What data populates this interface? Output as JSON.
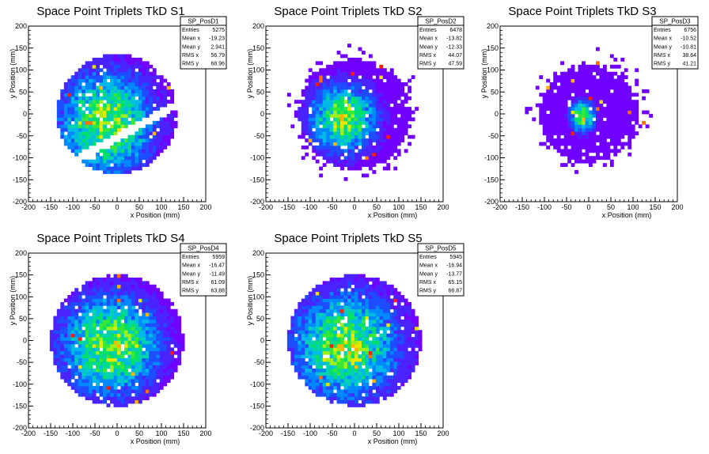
{
  "chart_data": [
    {
      "type": "heatmap",
      "title": "Space Point Triplets TkD S1",
      "xlabel": "x Position (mm)",
      "ylabel": "y Position (mm)",
      "xlim": [
        -200,
        200
      ],
      "ylim": [
        -200,
        200
      ],
      "xticks": [
        "-200",
        "-150",
        "-100",
        "-50",
        "0",
        "50",
        "100",
        "150",
        "200"
      ],
      "yticks": [
        "-200",
        "-150",
        "-100",
        "-50",
        "0",
        "50",
        "100",
        "150",
        "200"
      ],
      "stats": {
        "name": "SP_PosD1",
        "rows": [
          {
            "label": "Entries",
            "value": "5275"
          },
          {
            "label": "Mean x",
            "value": "-19.23"
          },
          {
            "label": "Mean y",
            "value": "2.941"
          },
          {
            "label": "RMS x",
            "value": "56.79"
          },
          {
            "label": "RMS y",
            "value": "68.96"
          }
        ]
      }
    },
    {
      "type": "heatmap",
      "title": "Space Point Triplets TkD S2",
      "xlabel": "x Position (mm)",
      "ylabel": "y Position (mm)",
      "xlim": [
        -200,
        200
      ],
      "ylim": [
        -200,
        200
      ],
      "xticks": [
        "-200",
        "-150",
        "-100",
        "-50",
        "0",
        "50",
        "100",
        "150",
        "200"
      ],
      "yticks": [
        "-200",
        "-150",
        "-100",
        "-50",
        "0",
        "50",
        "100",
        "150",
        "200"
      ],
      "stats": {
        "name": "SP_PosD2",
        "rows": [
          {
            "label": "Entries",
            "value": "6478"
          },
          {
            "label": "Mean x",
            "value": "-13.82"
          },
          {
            "label": "Mean y",
            "value": "-12.33"
          },
          {
            "label": "RMS x",
            "value": "44.07"
          },
          {
            "label": "RMS y",
            "value": "47.59"
          }
        ]
      }
    },
    {
      "type": "heatmap",
      "title": "Space Point Triplets TkD S3",
      "xlabel": "x Position (mm)",
      "ylabel": "y Position (mm)",
      "xlim": [
        -200,
        200
      ],
      "ylim": [
        -200,
        200
      ],
      "xticks": [
        "-200",
        "-150",
        "-100",
        "-50",
        "0",
        "50",
        "100",
        "150",
        "200"
      ],
      "yticks": [
        "-200",
        "-150",
        "-100",
        "-50",
        "0",
        "50",
        "100",
        "150",
        "200"
      ],
      "stats": {
        "name": "SP_PosD3",
        "rows": [
          {
            "label": "Entries",
            "value": "6756"
          },
          {
            "label": "Mean x",
            "value": "-10.52"
          },
          {
            "label": "Mean y",
            "value": "-10.81"
          },
          {
            "label": "RMS x",
            "value": "38.64"
          },
          {
            "label": "RMS y",
            "value": "41.21"
          }
        ]
      }
    },
    {
      "type": "heatmap",
      "title": "Space Point Triplets TkD S4",
      "xlabel": "x Position (mm)",
      "ylabel": "y Position (mm)",
      "xlim": [
        -200,
        200
      ],
      "ylim": [
        -200,
        200
      ],
      "xticks": [
        "-200",
        "-150",
        "-100",
        "-50",
        "0",
        "50",
        "100",
        "150",
        "200"
      ],
      "yticks": [
        "-200",
        "-150",
        "-100",
        "-50",
        "0",
        "50",
        "100",
        "150",
        "200"
      ],
      "stats": {
        "name": "SP_PosD4",
        "rows": [
          {
            "label": "Entries",
            "value": "5959"
          },
          {
            "label": "Mean x",
            "value": "-16.47"
          },
          {
            "label": "Mean y",
            "value": "-11.49"
          },
          {
            "label": "RMS x",
            "value": "61.09"
          },
          {
            "label": "RMS y",
            "value": "63.88"
          }
        ]
      }
    },
    {
      "type": "heatmap",
      "title": "Space Point Triplets TkD S5",
      "xlabel": "x Position (mm)",
      "ylabel": "y Position (mm)",
      "xlim": [
        -200,
        200
      ],
      "ylim": [
        -200,
        200
      ],
      "xticks": [
        "-200",
        "-150",
        "-100",
        "-50",
        "0",
        "50",
        "100",
        "150",
        "200"
      ],
      "yticks": [
        "-200",
        "-150",
        "-100",
        "-50",
        "0",
        "50",
        "100",
        "150",
        "200"
      ],
      "stats": {
        "name": "SP_PosD5",
        "rows": [
          {
            "label": "Entries",
            "value": "5945"
          },
          {
            "label": "Mean x",
            "value": "-16.94"
          },
          {
            "label": "Mean y",
            "value": "-13.77"
          },
          {
            "label": "RMS x",
            "value": "65.15"
          },
          {
            "label": "RMS y",
            "value": "66.87"
          }
        ]
      }
    }
  ]
}
